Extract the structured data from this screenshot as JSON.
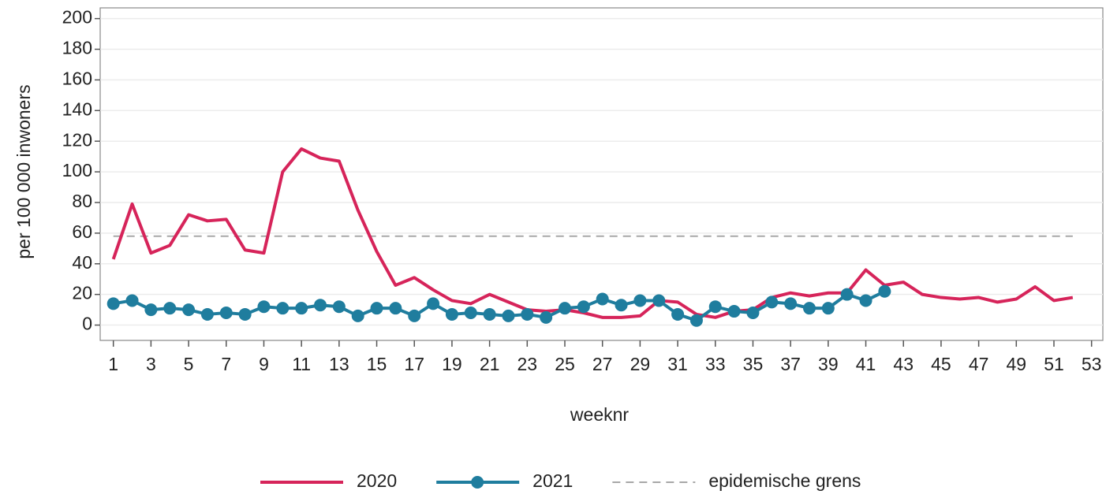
{
  "chart_data": {
    "type": "line",
    "x_label": "weeknr",
    "y_label": "per 100 000 inwoners",
    "xlim": [
      0.3,
      53.6
    ],
    "xticks": [
      1,
      3,
      5,
      7,
      9,
      11,
      13,
      15,
      17,
      19,
      21,
      23,
      25,
      27,
      29,
      31,
      33,
      35,
      37,
      39,
      41,
      43,
      45,
      47,
      49,
      51,
      53
    ],
    "ylim": [
      -10,
      207
    ],
    "yticks": [
      0,
      20,
      40,
      60,
      80,
      100,
      120,
      140,
      160,
      180,
      200
    ],
    "grid": true,
    "legend": "bottom",
    "series": [
      {
        "name": "2020",
        "color": "#d6245a",
        "markers": false,
        "x": [
          1,
          2,
          3,
          4,
          5,
          6,
          7,
          8,
          9,
          10,
          11,
          12,
          13,
          14,
          15,
          16,
          17,
          18,
          19,
          20,
          21,
          22,
          23,
          24,
          25,
          26,
          27,
          28,
          29,
          30,
          31,
          32,
          33,
          34,
          35,
          36,
          37,
          38,
          39,
          40,
          41,
          42,
          43,
          44,
          45,
          46,
          47,
          48,
          49,
          50,
          51,
          52
        ],
        "values": [
          43,
          79,
          47,
          52,
          72,
          68,
          69,
          49,
          47,
          100,
          115,
          109,
          107,
          75,
          48,
          26,
          31,
          23,
          16,
          14,
          20,
          15,
          10,
          9,
          10,
          8,
          5,
          5,
          6,
          16,
          15,
          7,
          5,
          9,
          10,
          18,
          21,
          19,
          21,
          21,
          36,
          26,
          28,
          20,
          18,
          17,
          18,
          15,
          17,
          25,
          16,
          18
        ]
      },
      {
        "name": "2021",
        "color": "#1f7d9e",
        "markers": true,
        "x": [
          1,
          2,
          3,
          4,
          5,
          6,
          7,
          8,
          9,
          10,
          11,
          12,
          13,
          14,
          15,
          16,
          17,
          18,
          19,
          20,
          21,
          22,
          23,
          24,
          25,
          26,
          27,
          28,
          29,
          30,
          31,
          32,
          33,
          34,
          35,
          36,
          37,
          38,
          39,
          40,
          41,
          42
        ],
        "values": [
          14,
          16,
          10,
          11,
          10,
          7,
          8,
          7,
          12,
          11,
          11,
          13,
          12,
          6,
          11,
          11,
          6,
          14,
          7,
          8,
          7,
          6,
          7,
          5,
          11,
          12,
          17,
          13,
          16,
          16,
          7,
          3,
          12,
          9,
          8,
          15,
          14,
          11,
          11,
          20,
          16,
          22
        ]
      }
    ],
    "reference_line": {
      "name": "epidemische grens",
      "value": 58,
      "color": "#a8a8a8",
      "dashed": true,
      "x_from": 1,
      "x_to": 52
    }
  }
}
